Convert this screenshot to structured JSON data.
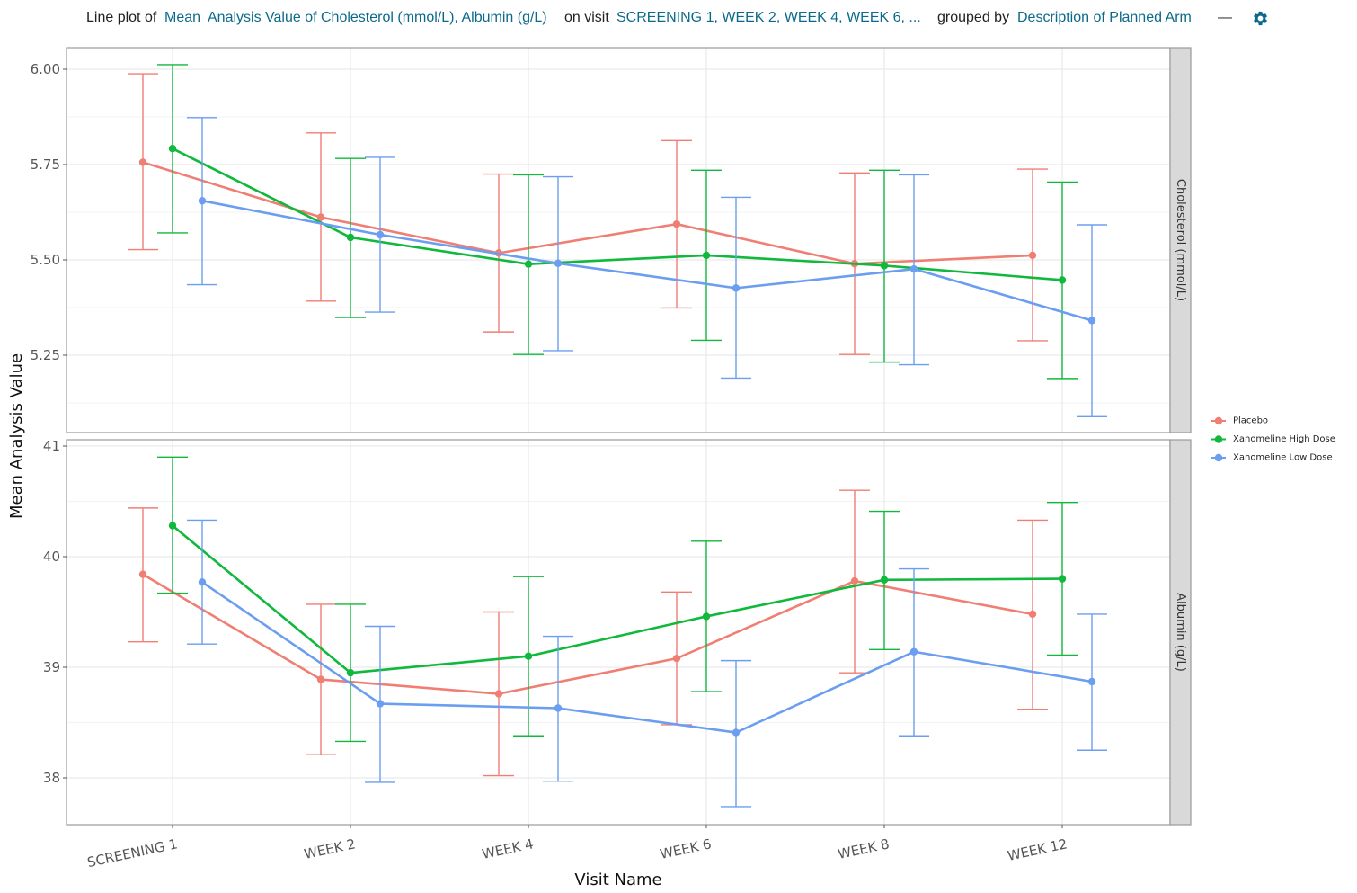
{
  "header": {
    "prefix": "Line plot of",
    "measure_link_1": "Mean",
    "measure_link_2": "Analysis Value of Cholesterol (mmol/L), Albumin (g/L)",
    "on_visit": "on visit",
    "visits_link": "SCREENING 1, WEEK 2, WEEK 4, WEEK 6, ...",
    "grouped_by": "grouped by",
    "group_link": "Description of Planned Arm",
    "dash": "—",
    "settings_icon": "gear-icon"
  },
  "chart_data": {
    "type": "line",
    "xlabel": "Visit Name",
    "ylabel": "Mean Analysis Value",
    "categories": [
      "SCREENING 1",
      "WEEK 2",
      "WEEK 4",
      "WEEK 6",
      "WEEK 8",
      "WEEK 12"
    ],
    "grid": true,
    "error_bars": true,
    "legend_position": "right",
    "series_colors": {
      "Placebo": "#f07e73",
      "Xanomeline High Dose": "#10b83c",
      "Xanomeline Low Dose": "#6b9ef0"
    },
    "legend": [
      "Placebo",
      "Xanomeline High Dose",
      "Xanomeline Low Dose"
    ],
    "panels": [
      {
        "strip_label": "Cholesterol (mmol/L)",
        "ylim": [
          5.06,
          6.06
        ],
        "yticks": [
          5.25,
          5.5,
          5.75
        ],
        "ytick_labels": [
          "5.25",
          "5.50",
          "5.75"
        ],
        "top_tick_label": "6.00",
        "series": [
          {
            "name": "Placebo",
            "values": [
              5.756,
              5.612,
              5.518,
              5.594,
              5.49,
              5.512
            ],
            "lower": [
              5.527,
              5.392,
              5.311,
              5.374,
              5.252,
              5.288
            ],
            "upper": [
              5.988,
              5.833,
              5.725,
              5.813,
              5.728,
              5.738
            ]
          },
          {
            "name": "Xanomeline High Dose",
            "values": [
              5.792,
              5.559,
              5.489,
              5.512,
              5.485,
              5.447
            ],
            "lower": [
              5.571,
              5.349,
              5.252,
              5.289,
              5.232,
              5.189
            ],
            "upper": [
              6.012,
              5.766,
              5.723,
              5.735,
              5.735,
              5.704
            ]
          },
          {
            "name": "Xanomeline Low Dose",
            "values": [
              5.655,
              5.566,
              5.491,
              5.426,
              5.476,
              5.341
            ],
            "lower": [
              5.435,
              5.363,
              5.262,
              5.19,
              5.225,
              5.089
            ],
            "upper": [
              5.873,
              5.769,
              5.718,
              5.664,
              5.723,
              5.592
            ]
          }
        ]
      },
      {
        "strip_label": "Albumin (g/L)",
        "ylim": [
          37.6,
          41.0
        ],
        "yticks": [
          38,
          39,
          40
        ],
        "ytick_labels": [
          "38",
          "39",
          "40"
        ],
        "top_tick_label": "41",
        "series": [
          {
            "name": "Placebo",
            "values": [
              39.84,
              38.89,
              38.76,
              39.08,
              39.78,
              39.48
            ],
            "lower": [
              39.23,
              38.21,
              38.02,
              38.48,
              38.95,
              38.62
            ],
            "upper": [
              40.44,
              39.57,
              39.5,
              39.68,
              40.6,
              40.33
            ]
          },
          {
            "name": "Xanomeline High Dose",
            "values": [
              40.28,
              38.95,
              39.1,
              39.46,
              39.79,
              39.8
            ],
            "lower": [
              39.67,
              38.33,
              38.38,
              38.78,
              39.16,
              39.11
            ],
            "upper": [
              40.9,
              39.57,
              39.82,
              40.14,
              40.41,
              40.49
            ]
          },
          {
            "name": "Xanomeline Low Dose",
            "values": [
              39.77,
              38.67,
              38.63,
              38.41,
              39.14,
              38.87
            ],
            "lower": [
              39.21,
              37.96,
              37.97,
              37.74,
              38.38,
              38.25
            ],
            "upper": [
              40.33,
              39.37,
              39.28,
              39.06,
              39.89,
              39.48
            ]
          }
        ]
      }
    ]
  }
}
